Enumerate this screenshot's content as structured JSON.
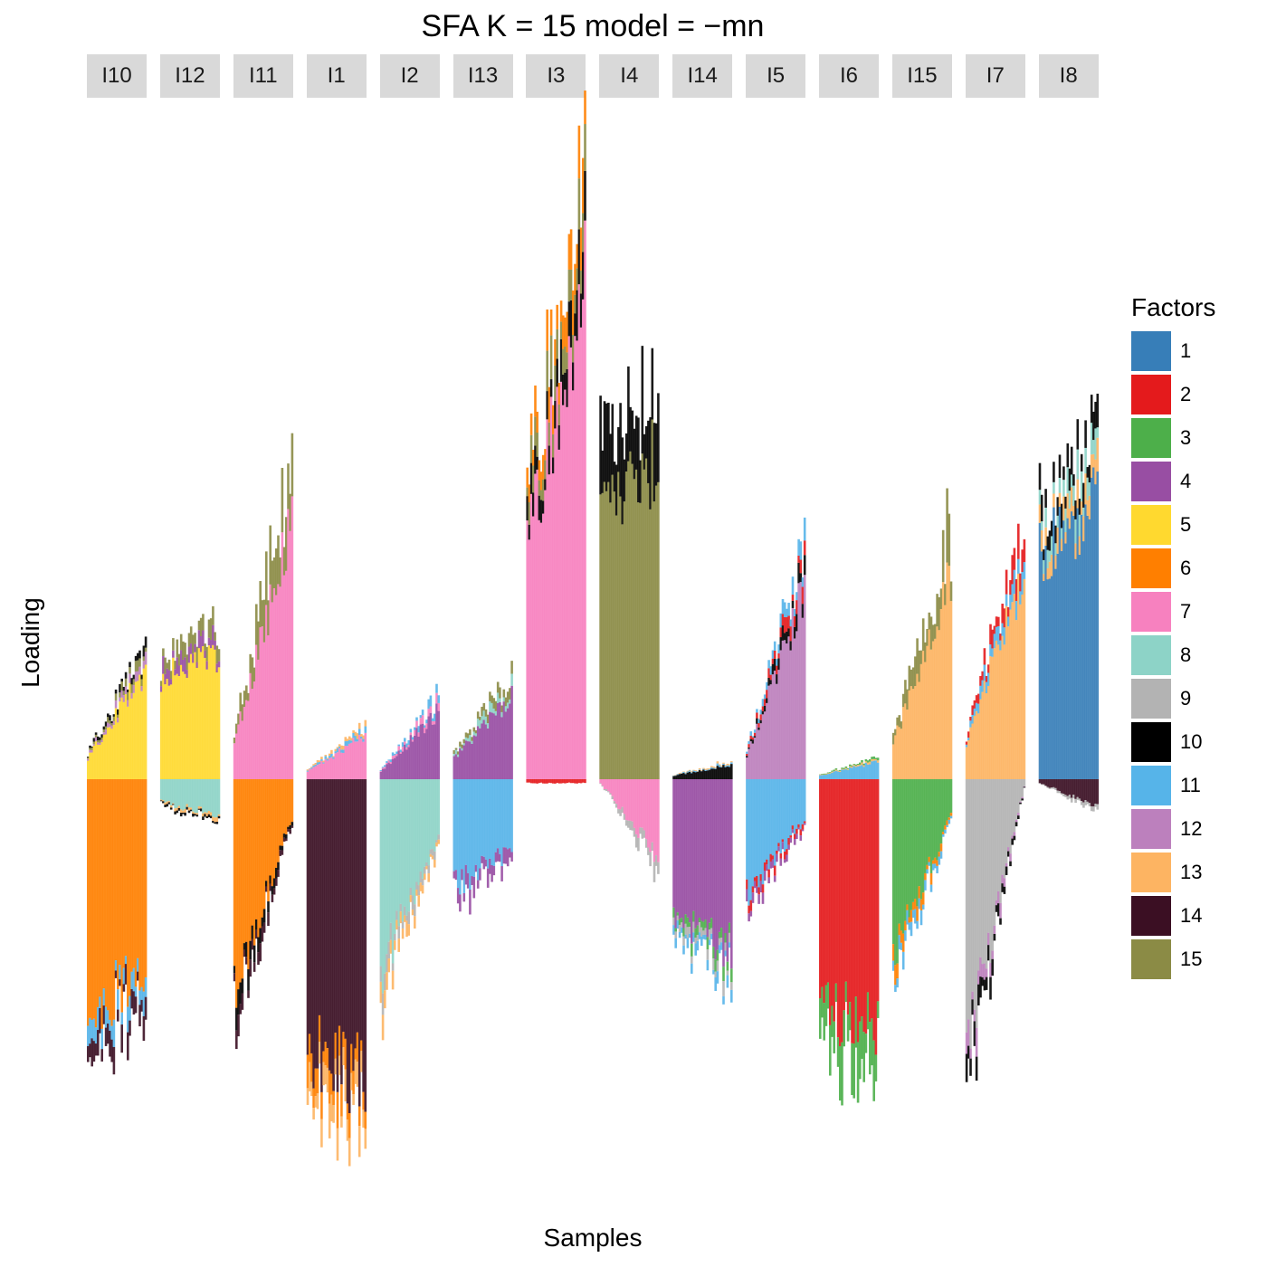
{
  "chart_data": {
    "type": "bar",
    "title": "SFA K = 15 model =  −mn",
    "xlabel": "Samples",
    "ylabel": "Loading",
    "legend_title": "Factors",
    "legend_position": "right",
    "grid": false,
    "stacked": true,
    "diverging": true,
    "panels": [
      "I10",
      "I12",
      "I11",
      "I1",
      "I2",
      "I13",
      "I3",
      "I4",
      "I14",
      "I5",
      "I6",
      "I15",
      "I7",
      "I8"
    ],
    "factors": [
      {
        "name": "1",
        "color": "#377EB8"
      },
      {
        "name": "2",
        "color": "#E41A1C"
      },
      {
        "name": "3",
        "color": "#4DAF4A"
      },
      {
        "name": "4",
        "color": "#984EA3"
      },
      {
        "name": "5",
        "color": "#FFD92F"
      },
      {
        "name": "6",
        "color": "#FF7F00"
      },
      {
        "name": "7",
        "color": "#F781BF"
      },
      {
        "name": "8",
        "color": "#8DD3C7"
      },
      {
        "name": "9",
        "color": "#B3B3B3"
      },
      {
        "name": "10",
        "color": "#000000"
      },
      {
        "name": "11",
        "color": "#56B4E9"
      },
      {
        "name": "12",
        "color": "#BC80BD"
      },
      {
        "name": "13",
        "color": "#FDB462"
      },
      {
        "name": "14",
        "color": "#3B0F23"
      },
      {
        "name": "15",
        "color": "#8B8B45"
      }
    ],
    "panel_profiles": [
      {
        "panel": "I10",
        "positive": {
          "factor": "5",
          "from": 0.3,
          "to": 1.5
        },
        "positive_minor": [
          "12",
          "15",
          "10"
        ],
        "negative": {
          "factor": "6",
          "from": 3.0,
          "to": 2.5
        },
        "negative_minor": [
          "11",
          "14"
        ]
      },
      {
        "panel": "I12",
        "positive": {
          "factor": "5",
          "from": 1.4,
          "to": 1.7
        },
        "positive_minor": [
          "4",
          "15"
        ],
        "negative": {
          "factor": "8",
          "from": 0.3,
          "to": 0.45
        },
        "negative_minor": [
          "13",
          "10"
        ]
      },
      {
        "panel": "I11",
        "positive": {
          "factor": "7",
          "from": 0.5,
          "to": 3.6
        },
        "positive_minor": [
          "15"
        ],
        "negative": {
          "factor": "6",
          "from": 2.8,
          "to": 0.5
        },
        "negative_minor": [
          "10",
          "14"
        ]
      },
      {
        "panel": "I1",
        "positive": {
          "factor": "7",
          "from": 0.1,
          "to": 0.6
        },
        "positive_minor": [
          "11",
          "13"
        ],
        "negative": {
          "factor": "14",
          "from": 3.5,
          "to": 3.9
        },
        "negative_minor": [
          "6",
          "13"
        ]
      },
      {
        "panel": "I2",
        "positive": {
          "factor": "4",
          "from": 0.1,
          "to": 0.95
        },
        "positive_minor": [
          "7",
          "11"
        ],
        "negative": {
          "factor": "8",
          "from": 2.5,
          "to": 0.7
        },
        "negative_minor": [
          "9",
          "13"
        ]
      },
      {
        "panel": "I13",
        "positive": {
          "factor": "4",
          "from": 0.3,
          "to": 1.15
        },
        "positive_minor": [
          "8",
          "15"
        ],
        "negative": {
          "factor": "11",
          "from": 1.4,
          "to": 0.9
        },
        "negative_minor": [
          "4"
        ]
      },
      {
        "panel": "I3",
        "positive": {
          "factor": "7",
          "from": 3.2,
          "to": 7.0
        },
        "positive_minor": [
          "10",
          "15",
          "6"
        ],
        "negative": {
          "factor": "2",
          "from": 0.05,
          "to": 0.05
        },
        "negative_minor": []
      },
      {
        "panel": "I4",
        "positive": {
          "factor": "15",
          "from": 3.6,
          "to": 4.5
        },
        "positive_minor": [
          "10"
        ],
        "negative": {
          "factor": "7",
          "from": 0.05,
          "to": 1.0
        },
        "negative_minor": [
          "9"
        ]
      },
      {
        "panel": "I14",
        "positive": {
          "factor": "10",
          "from": 0.05,
          "to": 0.2
        },
        "positive_minor": [
          "11",
          "13"
        ],
        "negative": {
          "factor": "4",
          "from": 1.8,
          "to": 2.2
        },
        "negative_minor": [
          "3",
          "9",
          "11"
        ]
      },
      {
        "panel": "I5",
        "positive": {
          "factor": "12",
          "from": 0.3,
          "to": 2.6
        },
        "positive_minor": [
          "10",
          "2",
          "11"
        ],
        "negative": {
          "factor": "11",
          "from": 1.5,
          "to": 0.5
        },
        "negative_minor": [
          "2",
          "4"
        ]
      },
      {
        "panel": "I6",
        "positive": {
          "factor": "11",
          "from": 0.05,
          "to": 0.25
        },
        "positive_minor": [
          "13",
          "3"
        ],
        "negative": {
          "factor": "2",
          "from": 3.0,
          "to": 3.2
        },
        "negative_minor": [
          "3"
        ]
      },
      {
        "panel": "I15",
        "positive": {
          "factor": "13",
          "from": 0.5,
          "to": 2.8
        },
        "positive_minor": [
          "15"
        ],
        "negative": {
          "factor": "3",
          "from": 2.3,
          "to": 0.5
        },
        "negative_minor": [
          "6",
          "11"
        ]
      },
      {
        "panel": "I7",
        "positive": {
          "factor": "13",
          "from": 0.5,
          "to": 2.9
        },
        "positive_minor": [
          "11",
          "2"
        ],
        "negative": {
          "factor": "9",
          "from": 3.5,
          "to": 0.1
        },
        "negative_minor": [
          "12",
          "10"
        ]
      },
      {
        "panel": "I8",
        "positive": {
          "factor": "1",
          "from": 3.1,
          "to": 3.8
        },
        "positive_minor": [
          "13",
          "8",
          "10"
        ],
        "negative": {
          "factor": "14",
          "from": 0.05,
          "to": 0.35
        },
        "negative_minor": [
          "9"
        ]
      }
    ]
  }
}
